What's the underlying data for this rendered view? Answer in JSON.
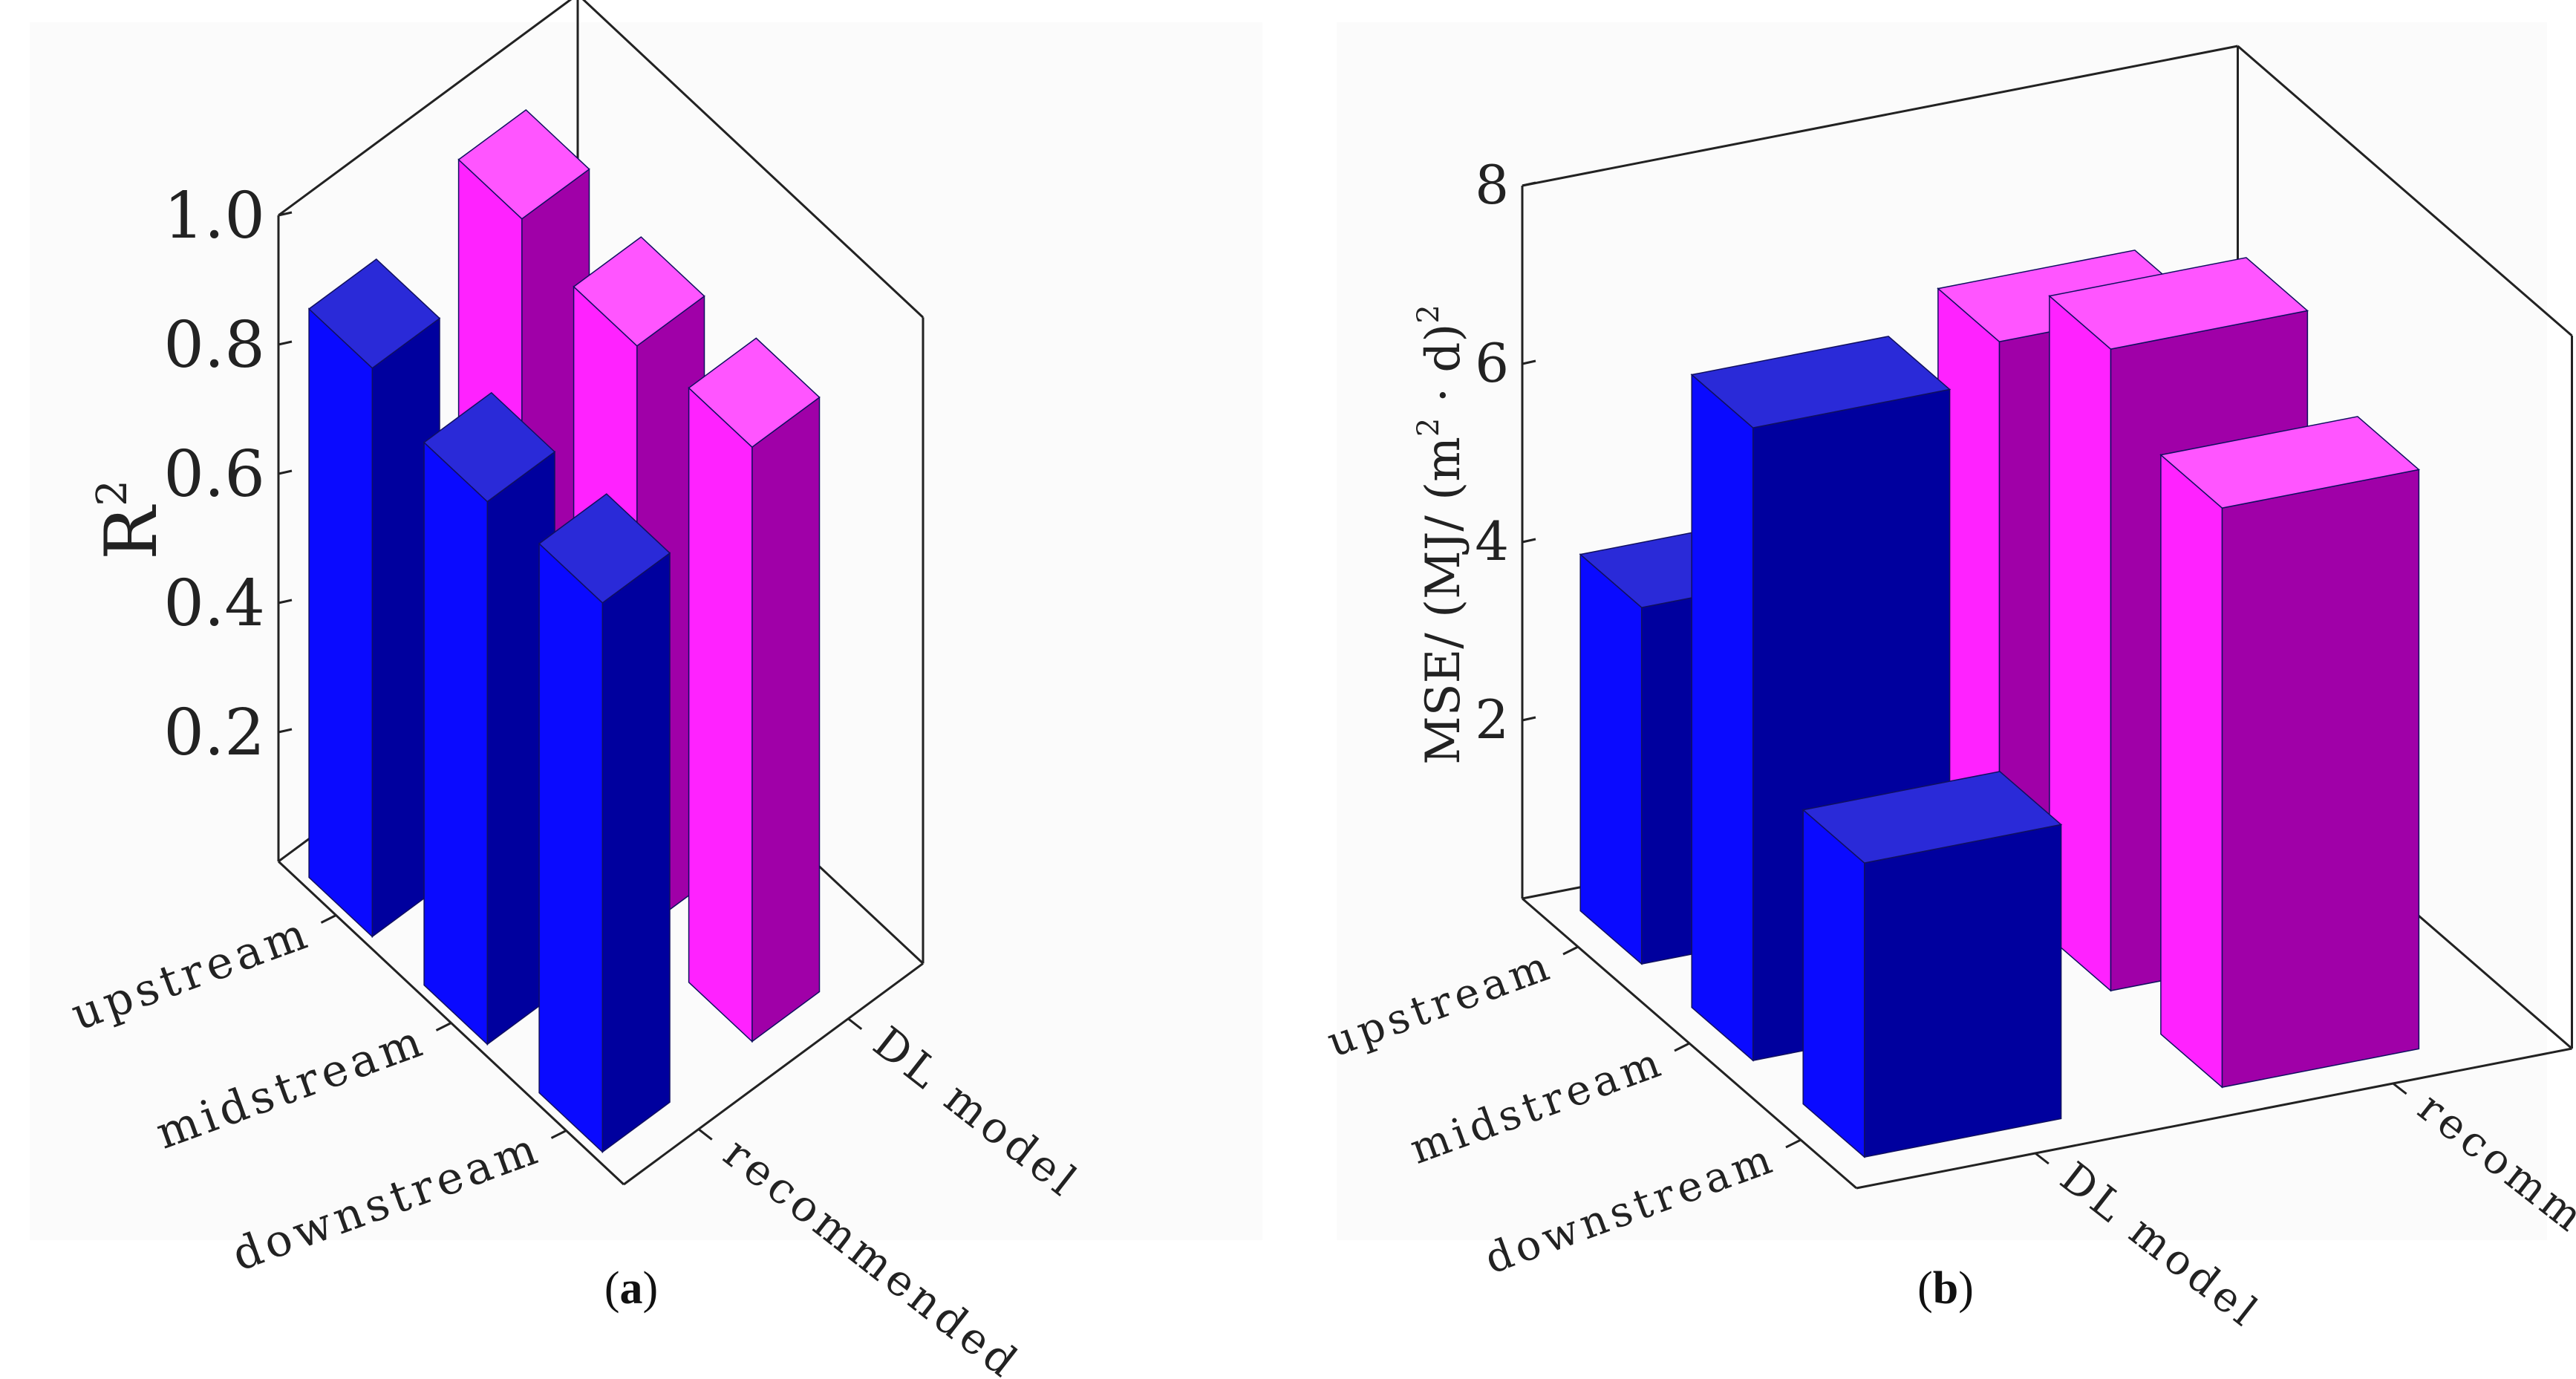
{
  "colors": {
    "upstream_front": "#0a0aff",
    "upstream_side": "#00009e",
    "upstream_top": "#2a2ad8",
    "mag_front": "#ff22ff",
    "mag_side": "#a000a8",
    "mag_top": "#ff55ff",
    "axis": "#222222"
  },
  "captions": [
    {
      "open": "(",
      "letter": "a",
      "close": ")"
    },
    {
      "open": "(",
      "letter": "b",
      "close": ")"
    }
  ],
  "chart_data": [
    {
      "type": "bar",
      "subtype": "3d",
      "categories": [
        "upstream",
        "midstream",
        "downstream"
      ],
      "series": [
        {
          "name": "recommended",
          "values": [
            0.88,
            0.84,
            0.85
          ]
        },
        {
          "name": "DL model",
          "values": [
            0.94,
            0.91,
            0.92
          ]
        }
      ],
      "ylabel": "R",
      "ylabel_sup": "2",
      "ylim": [
        0,
        1.0
      ],
      "yticks": [
        "0.2",
        "0.4",
        "0.6",
        "0.8",
        "1.0"
      ],
      "ytick_values": [
        0.2,
        0.4,
        0.6,
        0.8,
        1.0
      ],
      "grid": false
    },
    {
      "type": "bar",
      "subtype": "3d",
      "categories": [
        "upstream",
        "midstream",
        "downstream"
      ],
      "series": [
        {
          "name": "DL model",
          "values": [
            4.0,
            7.1,
            3.3
          ]
        },
        {
          "name": "recommended",
          "values": [
            6.2,
            7.2,
            6.5
          ]
        }
      ],
      "ylabel": "MSE/ (MJ/ (m",
      "ylabel_sup": "2",
      "ylabel_tail": " · d)",
      "ylabel_sup2": "2",
      "ylim": [
        0,
        8
      ],
      "yticks": [
        "2",
        "4",
        "6",
        "8"
      ],
      "ytick_values": [
        2,
        4,
        6,
        8
      ],
      "grid": false
    }
  ]
}
